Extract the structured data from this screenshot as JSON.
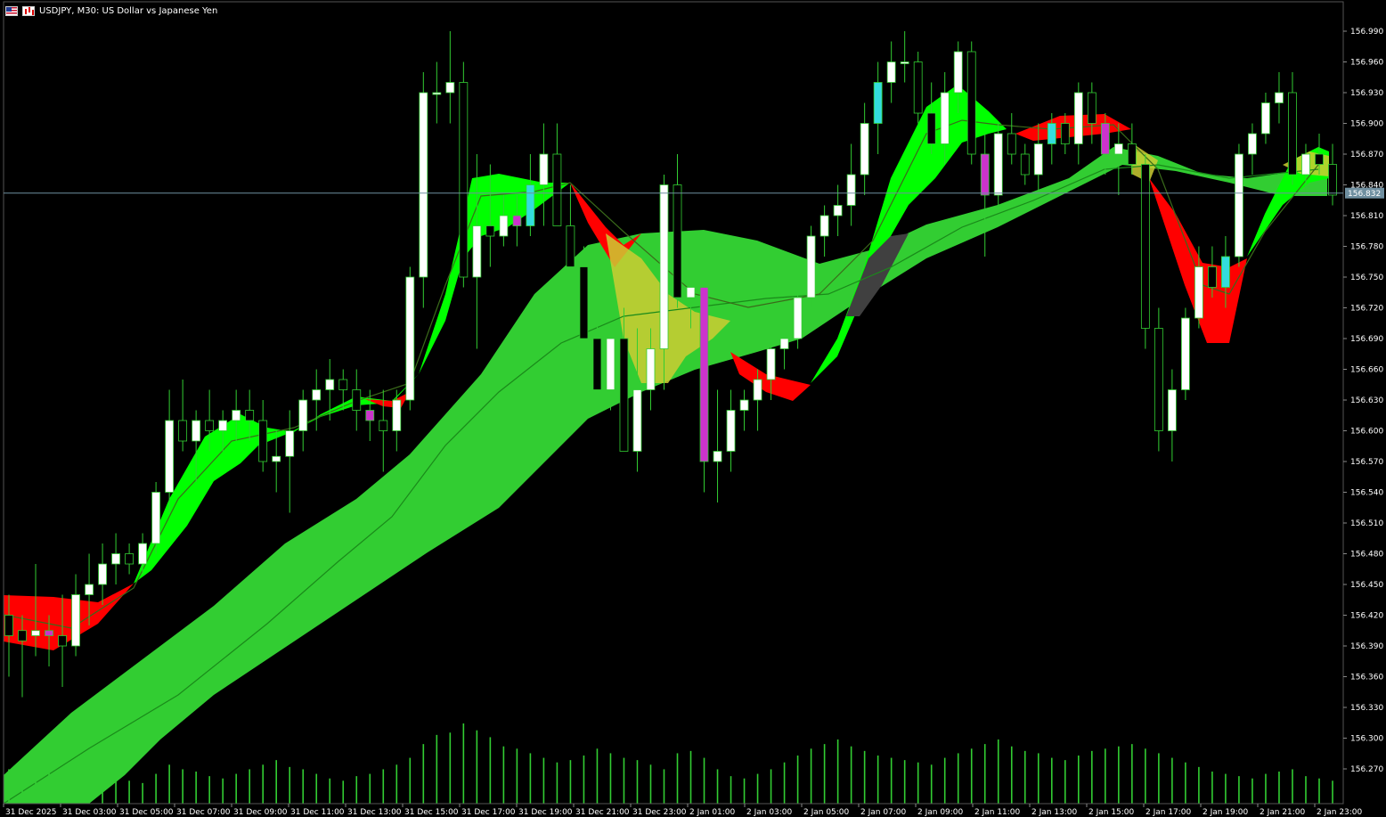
{
  "window": {
    "symbol_title": "USDJPY, M30:  US Dollar vs Japanese Yen",
    "icons": [
      "flag-icon",
      "chart-type-icon"
    ]
  },
  "colors": {
    "background": "#000000",
    "candle_bull": "#ffffff",
    "candle_bear": "#000000",
    "wick": "#32cd32",
    "band_green": "#32cd32",
    "band_lime": "#00ff00",
    "band_red": "#ff0000",
    "band_yellow": "#cccc33",
    "band_gray": "#404040",
    "magenta_marker": "#cc33cc",
    "cyan_marker": "#33dddd",
    "volume": "#32cd32",
    "price_line": "#6f8fa0",
    "current_price_bg": "#6f8fa0"
  },
  "current_price": "156.832",
  "chart_data": {
    "type": "line",
    "title": "USDJPY, M30:  US Dollar vs Japanese Yen",
    "y_tick_labels": [
      "156.990",
      "156.960",
      "156.930",
      "156.900",
      "156.870",
      "156.840",
      "156.810",
      "156.780",
      "156.750",
      "156.720",
      "156.690",
      "156.660",
      "156.630",
      "156.600",
      "156.570",
      "156.540",
      "156.510",
      "156.480",
      "156.450",
      "156.420",
      "156.390",
      "156.360",
      "156.330",
      "156.300",
      "156.270"
    ],
    "x_tick_labels": [
      "31 Dec 2025",
      "31 Dec 03:00",
      "31 Dec 05:00",
      "31 Dec 07:00",
      "31 Dec 09:00",
      "31 Dec 11:00",
      "31 Dec 13:00",
      "31 Dec 15:00",
      "31 Dec 17:00",
      "31 Dec 19:00",
      "31 Dec 21:00",
      "31 Dec 23:00",
      "2 Jan 01:00",
      "2 Jan 03:00",
      "2 Jan 05:00",
      "2 Jan 07:00",
      "2 Jan 09:00",
      "2 Jan 11:00",
      "2 Jan 13:00",
      "2 Jan 15:00",
      "2 Jan 17:00",
      "2 Jan 19:00",
      "2 Jan 21:00",
      "2 Jan 23:00"
    ],
    "ylim": [
      156.245,
      157.015
    ],
    "grid": false,
    "candles": [
      [
        156.42,
        156.44,
        156.36,
        156.4
      ],
      [
        156.405,
        156.42,
        156.34,
        156.395
      ],
      [
        156.4,
        156.47,
        156.38,
        156.405
      ],
      [
        156.405,
        156.42,
        156.37,
        156.4
      ],
      [
        156.4,
        156.44,
        156.35,
        156.39
      ],
      [
        156.39,
        156.46,
        156.38,
        156.44
      ],
      [
        156.44,
        156.48,
        156.41,
        156.45
      ],
      [
        156.45,
        156.49,
        156.43,
        156.47
      ],
      [
        156.47,
        156.5,
        156.45,
        156.48
      ],
      [
        156.48,
        156.49,
        156.46,
        156.47
      ],
      [
        156.47,
        156.5,
        156.46,
        156.49
      ],
      [
        156.49,
        156.55,
        156.48,
        156.54
      ],
      [
        156.54,
        156.64,
        156.52,
        156.61
      ],
      [
        156.61,
        156.65,
        156.58,
        156.59
      ],
      [
        156.59,
        156.62,
        156.55,
        156.61
      ],
      [
        156.61,
        156.64,
        156.58,
        156.6
      ],
      [
        156.6,
        156.62,
        156.58,
        156.61
      ],
      [
        156.61,
        156.64,
        156.59,
        156.62
      ],
      [
        156.62,
        156.64,
        156.59,
        156.61
      ],
      [
        156.61,
        156.63,
        156.56,
        156.57
      ],
      [
        156.57,
        156.6,
        156.54,
        156.575
      ],
      [
        156.575,
        156.62,
        156.52,
        156.6
      ],
      [
        156.6,
        156.64,
        156.58,
        156.63
      ],
      [
        156.63,
        156.66,
        156.6,
        156.64
      ],
      [
        156.64,
        156.67,
        156.61,
        156.65
      ],
      [
        156.65,
        156.66,
        156.62,
        156.64
      ],
      [
        156.64,
        156.66,
        156.6,
        156.62
      ],
      [
        156.62,
        156.64,
        156.59,
        156.61
      ],
      [
        156.61,
        156.64,
        156.56,
        156.6
      ],
      [
        156.6,
        156.64,
        156.58,
        156.63
      ],
      [
        156.63,
        156.76,
        156.62,
        156.75
      ],
      [
        156.75,
        156.95,
        156.72,
        156.93
      ],
      [
        156.93,
        156.96,
        156.9,
        156.93
      ],
      [
        156.93,
        156.99,
        156.9,
        156.94
      ],
      [
        156.94,
        156.96,
        156.74,
        156.75
      ],
      [
        156.75,
        156.87,
        156.68,
        156.8
      ],
      [
        156.8,
        156.86,
        156.76,
        156.79
      ],
      [
        156.79,
        156.83,
        156.78,
        156.81
      ],
      [
        156.81,
        156.83,
        156.78,
        156.8
      ],
      [
        156.8,
        156.87,
        156.79,
        156.84
      ],
      [
        156.84,
        156.9,
        156.8,
        156.87
      ],
      [
        156.87,
        156.9,
        156.8,
        156.8
      ],
      [
        156.8,
        156.84,
        156.75,
        156.76
      ],
      [
        156.76,
        156.78,
        156.68,
        156.69
      ],
      [
        156.69,
        156.72,
        156.62,
        156.64
      ],
      [
        156.64,
        156.7,
        156.62,
        156.69
      ],
      [
        156.69,
        156.72,
        156.58,
        156.58
      ],
      [
        156.58,
        156.7,
        156.56,
        156.64
      ],
      [
        156.64,
        156.7,
        156.62,
        156.68
      ],
      [
        156.68,
        156.85,
        156.64,
        156.84
      ],
      [
        156.84,
        156.87,
        156.72,
        156.73
      ],
      [
        156.73,
        156.76,
        156.7,
        156.74
      ],
      [
        156.74,
        156.75,
        156.54,
        156.57
      ],
      [
        156.57,
        156.64,
        156.53,
        156.58
      ],
      [
        156.58,
        156.64,
        156.56,
        156.62
      ],
      [
        156.62,
        156.64,
        156.6,
        156.63
      ],
      [
        156.63,
        156.66,
        156.6,
        156.65
      ],
      [
        156.65,
        156.7,
        156.63,
        156.68
      ],
      [
        156.68,
        156.69,
        156.66,
        156.69
      ],
      [
        156.69,
        156.74,
        156.68,
        156.73
      ],
      [
        156.73,
        156.8,
        156.72,
        156.79
      ],
      [
        156.79,
        156.82,
        156.77,
        156.81
      ],
      [
        156.81,
        156.84,
        156.79,
        156.82
      ],
      [
        156.82,
        156.88,
        156.8,
        156.85
      ],
      [
        156.85,
        156.92,
        156.83,
        156.9
      ],
      [
        156.9,
        156.96,
        156.87,
        156.94
      ],
      [
        156.94,
        156.98,
        156.92,
        156.96
      ],
      [
        156.96,
        156.99,
        156.94,
        156.96
      ],
      [
        156.96,
        156.97,
        156.9,
        156.91
      ],
      [
        156.91,
        156.94,
        156.87,
        156.88
      ],
      [
        156.88,
        156.95,
        156.86,
        156.93
      ],
      [
        156.93,
        156.98,
        156.91,
        156.97
      ],
      [
        156.97,
        156.98,
        156.86,
        156.87
      ],
      [
        156.87,
        156.89,
        156.77,
        156.83
      ],
      [
        156.83,
        156.9,
        156.82,
        156.89
      ],
      [
        156.89,
        156.91,
        156.86,
        156.87
      ],
      [
        156.87,
        156.88,
        156.84,
        156.85
      ],
      [
        156.85,
        156.9,
        156.83,
        156.88
      ],
      [
        156.88,
        156.91,
        156.86,
        156.9
      ],
      [
        156.9,
        156.91,
        156.87,
        156.88
      ],
      [
        156.88,
        156.94,
        156.86,
        156.93
      ],
      [
        156.93,
        156.94,
        156.88,
        156.9
      ],
      [
        156.9,
        156.91,
        156.85,
        156.87
      ],
      [
        156.87,
        156.9,
        156.83,
        156.88
      ],
      [
        156.88,
        156.9,
        156.85,
        156.86
      ],
      [
        156.86,
        156.87,
        156.68,
        156.7
      ],
      [
        156.7,
        156.72,
        156.58,
        156.6
      ],
      [
        156.6,
        156.66,
        156.57,
        156.64
      ],
      [
        156.64,
        156.72,
        156.63,
        156.71
      ],
      [
        156.71,
        156.78,
        156.7,
        156.76
      ],
      [
        156.76,
        156.78,
        156.73,
        156.74
      ],
      [
        156.74,
        156.79,
        156.72,
        156.77
      ],
      [
        156.77,
        156.88,
        156.76,
        156.87
      ],
      [
        156.87,
        156.9,
        156.85,
        156.89
      ],
      [
        156.89,
        156.93,
        156.88,
        156.92
      ],
      [
        156.92,
        156.95,
        156.9,
        156.93
      ],
      [
        156.93,
        156.95,
        156.84,
        156.85
      ],
      [
        156.85,
        156.88,
        156.83,
        156.87
      ],
      [
        156.87,
        156.89,
        156.85,
        156.86
      ],
      [
        156.86,
        156.88,
        156.82,
        156.83
      ]
    ],
    "volume": [
      30,
      18,
      20,
      28,
      22,
      24,
      30,
      26,
      28,
      20,
      18,
      26,
      34,
      30,
      28,
      24,
      22,
      26,
      30,
      34,
      38,
      32,
      30,
      26,
      22,
      20,
      24,
      26,
      30,
      34,
      40,
      52,
      60,
      62,
      70,
      64,
      58,
      50,
      48,
      44,
      40,
      36,
      38,
      42,
      48,
      44,
      40,
      38,
      34,
      30,
      44,
      46,
      40,
      30,
      24,
      22,
      26,
      30,
      36,
      42,
      48,
      52,
      56,
      50,
      46,
      42,
      40,
      38,
      36,
      34,
      40,
      44,
      48,
      52,
      56,
      50,
      46,
      44,
      40,
      38,
      42,
      46,
      48,
      50,
      52,
      48,
      44,
      40,
      36,
      32,
      28,
      26,
      24,
      22,
      26,
      28,
      30,
      24,
      22,
      20
    ],
    "series": [
      {
        "name": "",
        "values": [
          156.44,
          156.42,
          156.43,
          156.47,
          156.55,
          156.6,
          156.6,
          156.61,
          156.63,
          156.64,
          156.64,
          156.7,
          156.82,
          156.83,
          156.82,
          156.84,
          156.81,
          156.72,
          156.7,
          156.72,
          156.72,
          156.72,
          156.69,
          156.64,
          156.66,
          156.74,
          156.86,
          156.92,
          156.92,
          156.88,
          156.88,
          156.91,
          156.9,
          156.88,
          156.78,
          156.73,
          156.78,
          156.86,
          156.86
        ]
      }
    ]
  }
}
